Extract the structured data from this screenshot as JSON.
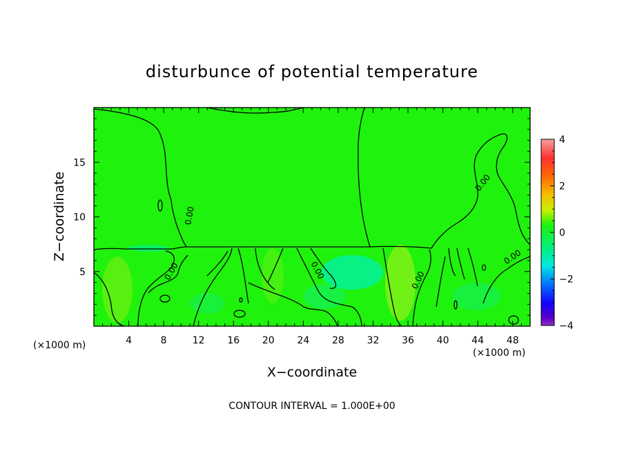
{
  "chart_data": {
    "type": "heatmap",
    "title": "disturbunce of potential temperature",
    "xlabel": "X−coordinate",
    "ylabel": "Z−coordinate",
    "x_unit_left": "(×1000 m)",
    "x_unit_right": "(×1000 m)",
    "footer": "CONTOUR INTERVAL = 1.000E+00",
    "xlim": [
      0,
      50
    ],
    "ylim": [
      0,
      20
    ],
    "x_ticks": [
      {
        "value": 4,
        "label": "4"
      },
      {
        "value": 8,
        "label": "8"
      },
      {
        "value": 12,
        "label": "12"
      },
      {
        "value": 16,
        "label": "16"
      },
      {
        "value": 20,
        "label": "20"
      },
      {
        "value": 24,
        "label": "24"
      },
      {
        "value": 28,
        "label": "28"
      },
      {
        "value": 32,
        "label": "32"
      },
      {
        "value": 36,
        "label": "36"
      },
      {
        "value": 40,
        "label": "40"
      },
      {
        "value": 44,
        "label": "44"
      },
      {
        "value": 48,
        "label": "48"
      }
    ],
    "y_ticks": [
      {
        "value": 5,
        "label": "5"
      },
      {
        "value": 10,
        "label": "10"
      },
      {
        "value": 15,
        "label": "15"
      }
    ],
    "colorbar": {
      "range": [
        -4,
        4
      ],
      "ticks": [
        {
          "value": 4,
          "label": "4"
        },
        {
          "value": 2,
          "label": "2"
        },
        {
          "value": 0,
          "label": "0"
        },
        {
          "value": -2,
          "label": "−2"
        },
        {
          "value": -4,
          "label": "−4"
        }
      ]
    },
    "contour_labels": [
      {
        "x": 8.9,
        "y": 5.0,
        "text": "0.00",
        "angle": -60
      },
      {
        "x": 11.0,
        "y": 10.1,
        "text": "0.00",
        "angle": -80
      },
      {
        "x": 25.6,
        "y": 5.1,
        "text": "0.00",
        "angle": 62
      },
      {
        "x": 37.2,
        "y": 4.2,
        "text": "0.00",
        "angle": -65
      },
      {
        "x": 44.6,
        "y": 13.1,
        "text": "0.00",
        "angle": -52
      },
      {
        "x": 48.0,
        "y": 6.3,
        "text": "0.00",
        "angle": -35
      },
      {
        "x": 44.7,
        "y": 5.3,
        "text": "0",
        "angle": 0
      }
    ]
  }
}
